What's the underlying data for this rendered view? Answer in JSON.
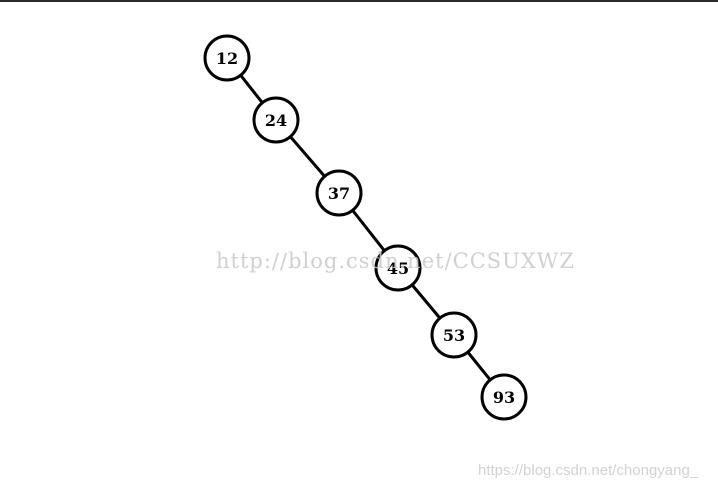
{
  "diagram": {
    "type": "binary-search-tree",
    "nodes": [
      {
        "id": "n12",
        "label": "12"
      },
      {
        "id": "n24",
        "label": "24"
      },
      {
        "id": "n37",
        "label": "37"
      },
      {
        "id": "n45",
        "label": "45"
      },
      {
        "id": "n53",
        "label": "53"
      },
      {
        "id": "n93",
        "label": "93"
      }
    ],
    "edges": [
      {
        "from": "n12",
        "to": "n24"
      },
      {
        "from": "n24",
        "to": "n37"
      },
      {
        "from": "n37",
        "to": "n45"
      },
      {
        "from": "n45",
        "to": "n53"
      },
      {
        "from": "n53",
        "to": "n93"
      }
    ]
  },
  "watermarks": {
    "center": "http://blog.csdn.net/CCSUXWZ",
    "corner": "https://blog.csdn.net/chongyang_"
  }
}
